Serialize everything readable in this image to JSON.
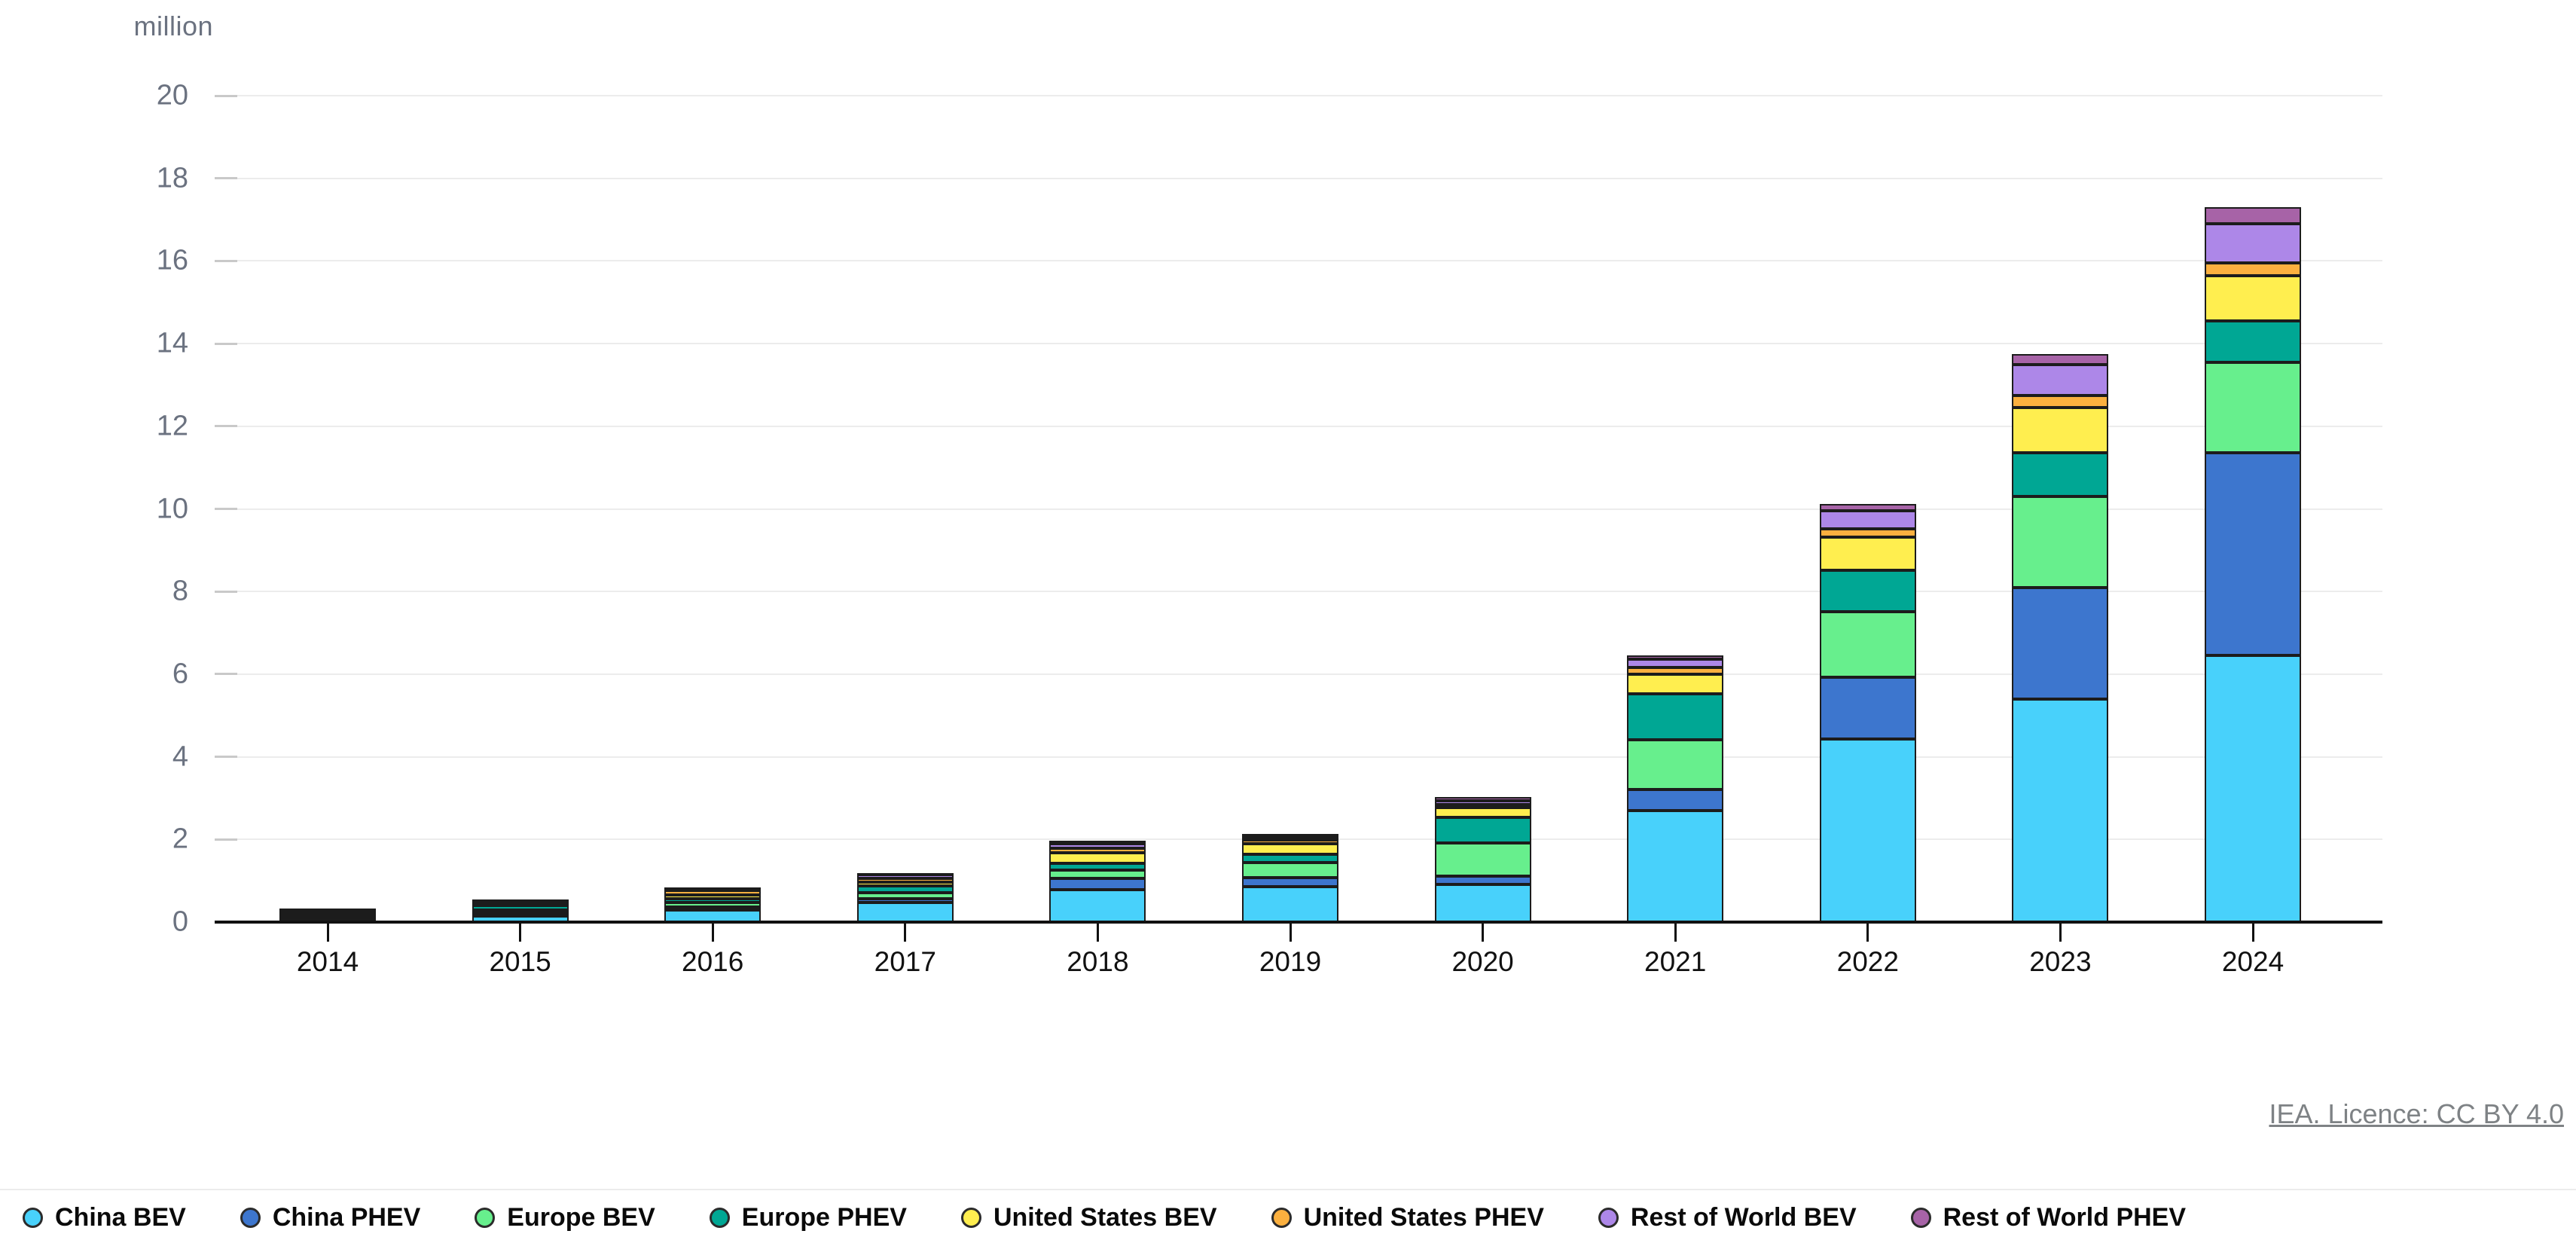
{
  "chart_data": {
    "type": "bar",
    "stacked": true,
    "unit_label": "million",
    "categories": [
      "2014",
      "2015",
      "2016",
      "2017",
      "2018",
      "2019",
      "2020",
      "2021",
      "2022",
      "2023",
      "2024"
    ],
    "series": [
      {
        "name": "China BEV",
        "color": "#48D1FB",
        "values": [
          0.04,
          0.15,
          0.29,
          0.47,
          0.78,
          0.85,
          0.92,
          2.7,
          4.43,
          5.4,
          6.45
        ]
      },
      {
        "name": "China PHEV",
        "color": "#3D76CE",
        "values": [
          0.01,
          0.06,
          0.08,
          0.1,
          0.27,
          0.23,
          0.2,
          0.5,
          1.5,
          2.7,
          4.9
        ]
      },
      {
        "name": "Europe BEV",
        "color": "#67EF8D",
        "values": [
          0.07,
          0.09,
          0.1,
          0.14,
          0.2,
          0.36,
          0.8,
          1.22,
          1.58,
          2.2,
          2.2
        ]
      },
      {
        "name": "Europe PHEV",
        "color": "#00A794",
        "values": [
          0.02,
          0.1,
          0.1,
          0.16,
          0.18,
          0.2,
          0.62,
          1.1,
          1.0,
          1.05,
          1.0
        ]
      },
      {
        "name": "United States BEV",
        "color": "#FFEE4F",
        "values": [
          0.08,
          0.07,
          0.09,
          0.1,
          0.24,
          0.25,
          0.23,
          0.47,
          0.8,
          1.1,
          1.1
        ]
      },
      {
        "name": "United States PHEV",
        "color": "#FBB03F",
        "values": [
          0.1,
          0.04,
          0.1,
          0.09,
          0.12,
          0.09,
          0.07,
          0.17,
          0.2,
          0.3,
          0.3
        ]
      },
      {
        "name": "Rest of World BEV",
        "color": "#AD87E8",
        "values": [
          0.01,
          0.03,
          0.05,
          0.08,
          0.1,
          0.08,
          0.1,
          0.2,
          0.45,
          0.75,
          0.95
        ]
      },
      {
        "name": "Rest of World PHEV",
        "color": "#A763A7",
        "values": [
          0.005,
          0.01,
          0.02,
          0.05,
          0.08,
          0.08,
          0.08,
          0.1,
          0.15,
          0.25,
          0.4
        ]
      }
    ],
    "ylim": [
      0,
      20
    ],
    "ytick_step": 2,
    "grid": true,
    "legend_position": "bottom"
  },
  "source": {
    "label": "IEA. Licence: CC BY 4.0"
  }
}
